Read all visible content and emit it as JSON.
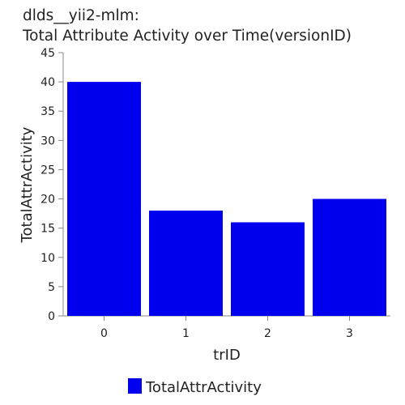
{
  "chart_data": {
    "type": "bar",
    "title_lines": [
      "dlds__yii2-mlm:",
      "Total Attribute Activity over Time(versionID)"
    ],
    "categories": [
      "0",
      "1",
      "2",
      "3"
    ],
    "series": [
      {
        "name": "TotalAttrActivity",
        "values": [
          40,
          18,
          16,
          20
        ]
      }
    ],
    "xlabel": "trID",
    "ylabel": "TotalAttrActivity",
    "ylim": [
      0,
      45
    ],
    "yticks": [
      "0",
      "5",
      "10",
      "15",
      "20",
      "25",
      "30",
      "35",
      "40",
      "45"
    ],
    "grid": false,
    "legend_position": "bottom-center",
    "colors": {
      "bar": "#0000ee",
      "axis": "#888888",
      "text": "#222222"
    }
  }
}
